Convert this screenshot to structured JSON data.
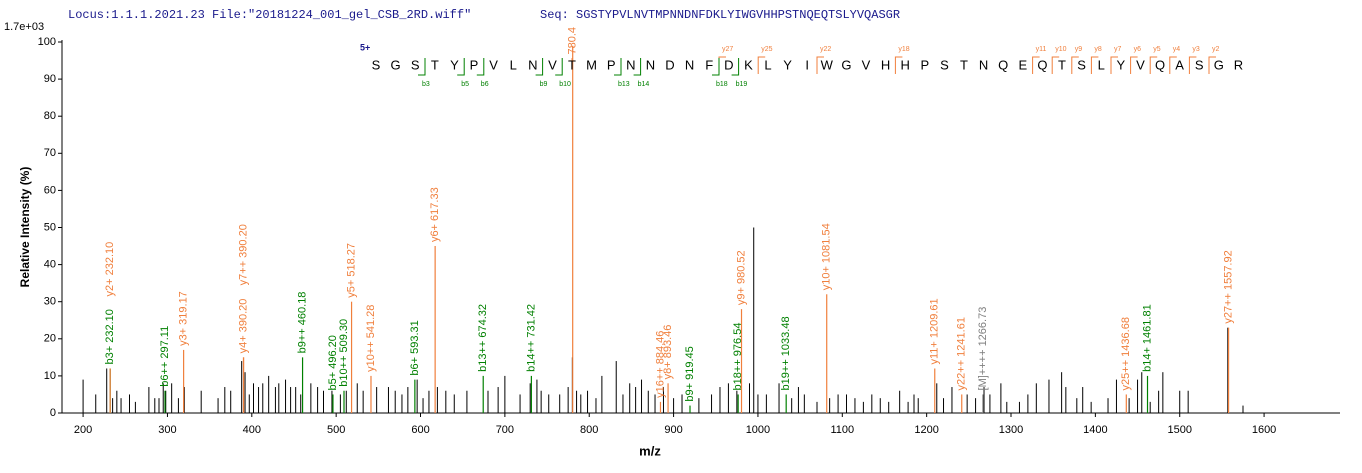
{
  "chart_data": {
    "type": "spectrum",
    "locus_text": "Locus:1.1.1.2021.23 File:\"20181224_001_gel_CSB_2RD.wiff\"",
    "seq_text": "Seq: SGSTYPVLNVTMPNNDNFDKLYIWGVHHPSTNQEQTSLYVQASGR",
    "y_scale_label": "1.7e+03",
    "x_label": "m/z",
    "y_label": "Relative   Intensity (%)",
    "xlim": [
      175,
      1690
    ],
    "xticks": [
      200,
      300,
      400,
      500,
      600,
      700,
      800,
      900,
      1000,
      1100,
      1200,
      1300,
      1400,
      1500,
      1600
    ],
    "ylim": [
      0,
      100
    ],
    "yticks": [
      0,
      10,
      20,
      30,
      40,
      50,
      60,
      70,
      80,
      90,
      100
    ],
    "peaks": {
      "color": "#000000",
      "mz": [
        200,
        215,
        228,
        235,
        240,
        245,
        255,
        262,
        278,
        285,
        290,
        295,
        298,
        305,
        313,
        320,
        340,
        360,
        368,
        375,
        388,
        392,
        397,
        402,
        408,
        413,
        420,
        428,
        432,
        440,
        446,
        452,
        458,
        470,
        478,
        485,
        495,
        505,
        512,
        525,
        532,
        548,
        562,
        570,
        578,
        585,
        596,
        603,
        610,
        620,
        630,
        640,
        655,
        680,
        692,
        700,
        718,
        730,
        738,
        743,
        752,
        765,
        775,
        780,
        785,
        790,
        798,
        808,
        815,
        832,
        840,
        848,
        855,
        862,
        870,
        878,
        888,
        900,
        910,
        930,
        945,
        955,
        965,
        975,
        990,
        995,
        1000,
        1010,
        1025,
        1040,
        1048,
        1055,
        1070,
        1085,
        1095,
        1105,
        1115,
        1125,
        1135,
        1145,
        1155,
        1168,
        1178,
        1185,
        1190,
        1212,
        1220,
        1230,
        1248,
        1258,
        1268,
        1275,
        1288,
        1295,
        1310,
        1320,
        1330,
        1345,
        1360,
        1365,
        1378,
        1385,
        1395,
        1415,
        1425,
        1440,
        1450,
        1455,
        1465,
        1475,
        1480,
        1500,
        1510,
        1557,
        1575
      ],
      "intensity": [
        9,
        5,
        12,
        4,
        6,
        4,
        5,
        3,
        7,
        4,
        4,
        8,
        6,
        8,
        4,
        7,
        6,
        4,
        7,
        6,
        14,
        11,
        5,
        8,
        7,
        8,
        10,
        7,
        8,
        9,
        7,
        7,
        5,
        8,
        7,
        6,
        6,
        5,
        6,
        8,
        6,
        7,
        7,
        6,
        5,
        7,
        9,
        4,
        6,
        7,
        6,
        5,
        6,
        6,
        7,
        10,
        5,
        8,
        9,
        6,
        5,
        5,
        7,
        15,
        6,
        5,
        6,
        4,
        10,
        14,
        5,
        8,
        7,
        9,
        6,
        5,
        7,
        4,
        5,
        4,
        5,
        7,
        8,
        6,
        8,
        50,
        5,
        5,
        8,
        4,
        7,
        5,
        3,
        4,
        5,
        5,
        4,
        3,
        5,
        4,
        3,
        6,
        3,
        5,
        4,
        8,
        4,
        7,
        5,
        4,
        7,
        5,
        8,
        3,
        3,
        5,
        8,
        9,
        11,
        7,
        4,
        7,
        3,
        4,
        9,
        4,
        9,
        11,
        3,
        6,
        11,
        6,
        6,
        23,
        2
      ]
    },
    "annotations": [
      {
        "label": "b3+ 232.10",
        "mz": 232.1,
        "intensity": 12,
        "color": "#008000"
      },
      {
        "label": "y2+ 232.10",
        "mz": 232.1,
        "intensity": 12,
        "color": "#f07f3c"
      },
      {
        "label": "b6++ 297.11",
        "mz": 297.11,
        "intensity": 6,
        "color": "#008000"
      },
      {
        "label": "y3+ 319.17",
        "mz": 319.17,
        "intensity": 17,
        "color": "#f07f3c"
      },
      {
        "label": "y4+ 390.20",
        "mz": 390.2,
        "intensity": 15,
        "color": "#f07f3c"
      },
      {
        "label": "y7++ 390.20",
        "mz": 390.2,
        "intensity": 15,
        "color": "#f07f3c"
      },
      {
        "label": "b9++ 460.18",
        "mz": 460.18,
        "intensity": 15,
        "color": "#008000"
      },
      {
        "label": "b5+ 496.20",
        "mz": 496.2,
        "intensity": 5,
        "color": "#008000"
      },
      {
        "label": "b10++ 509.30",
        "mz": 509.3,
        "intensity": 6,
        "color": "#008000"
      },
      {
        "label": "y5+ 518.27",
        "mz": 518.27,
        "intensity": 30,
        "color": "#f07f3c"
      },
      {
        "label": "y10++ 541.28",
        "mz": 541.28,
        "intensity": 10,
        "color": "#f07f3c"
      },
      {
        "label": "b6+ 593.31",
        "mz": 593.31,
        "intensity": 9,
        "color": "#008000"
      },
      {
        "label": "y6+ 617.33",
        "mz": 617.33,
        "intensity": 45,
        "color": "#f07f3c"
      },
      {
        "label": "b13++ 674.32",
        "mz": 674.32,
        "intensity": 10,
        "color": "#008000"
      },
      {
        "label": "b14++ 731.42",
        "mz": 731.42,
        "intensity": 10,
        "color": "#008000"
      },
      {
        "label": "+ 780.4",
        "mz": 780.4,
        "intensity": 99,
        "color": "#f07f3c"
      },
      {
        "label": "y16++ 884.46",
        "mz": 884.46,
        "intensity": 3,
        "color": "#f07f3c"
      },
      {
        "label": "y8+ 893.46",
        "mz": 893.46,
        "intensity": 8,
        "color": "#f07f3c"
      },
      {
        "label": "b9+ 919.45",
        "mz": 919.45,
        "intensity": 2,
        "color": "#008000"
      },
      {
        "label": "b18++ 976.54",
        "mz": 976.54,
        "intensity": 5,
        "color": "#008000"
      },
      {
        "label": "y9+ 980.52",
        "mz": 980.52,
        "intensity": 28,
        "color": "#f07f3c"
      },
      {
        "label": "b19++ 1033.48",
        "mz": 1033.48,
        "intensity": 5,
        "color": "#008000"
      },
      {
        "label": "y10+ 1081.54",
        "mz": 1081.54,
        "intensity": 32,
        "color": "#f07f3c"
      },
      {
        "label": "y11+ 1209.61",
        "mz": 1209.61,
        "intensity": 12,
        "color": "#f07f3c"
      },
      {
        "label": "y22++ 1241.61",
        "mz": 1241.61,
        "intensity": 5,
        "color": "#f07f3c"
      },
      {
        "label": "[M]++++ 1266.73",
        "mz": 1266.73,
        "intensity": 5,
        "color": "#808080"
      },
      {
        "label": "y25++ 1436.68",
        "mz": 1436.68,
        "intensity": 5,
        "color": "#f07f3c"
      },
      {
        "label": "b14+ 1461.81",
        "mz": 1461.81,
        "intensity": 10,
        "color": "#008000"
      },
      {
        "label": "y27++ 1557.92",
        "mz": 1557.92,
        "intensity": 23,
        "color": "#f07f3c"
      }
    ],
    "sequence_map": {
      "charge": "5+",
      "residues": [
        "S",
        "G",
        "S",
        "T",
        "Y",
        "P",
        "V",
        "L",
        "N",
        "V",
        "T",
        "M",
        "P",
        "N",
        "N",
        "D",
        "N",
        "F",
        "D",
        "K",
        "L",
        "Y",
        "I",
        "W",
        "G",
        "V",
        "H",
        "H",
        "P",
        "S",
        "T",
        "N",
        "Q",
        "E",
        "Q",
        "T",
        "S",
        "L",
        "Y",
        "V",
        "Q",
        "A",
        "S",
        "G",
        "R"
      ],
      "y_ions": [
        "y27",
        "y25",
        "y22",
        "y18",
        "y11",
        "y10",
        "y9",
        "y8",
        "y7",
        "y6",
        "y5",
        "y4",
        "y3",
        "y2"
      ],
      "b_ions": [
        "b3",
        "b5",
        "b6",
        "b9",
        "b10",
        "b13",
        "b14",
        "b18",
        "b19"
      ],
      "y_color": "#f07f3c",
      "b_color": "#008000"
    }
  }
}
